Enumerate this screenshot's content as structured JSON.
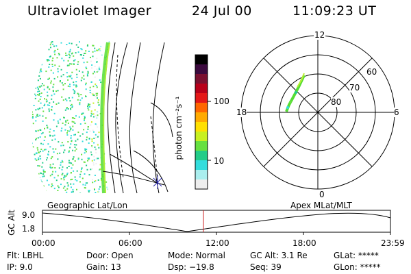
{
  "header": {
    "title": "Ultraviolet Imager",
    "date": "24 Jul 00",
    "time": "11:09:23 UT"
  },
  "colorbar": {
    "unit_label": "photon cm⁻²s⁻¹",
    "ticks": [
      "100",
      "10"
    ],
    "colors": [
      "#000000",
      "#3b0a3e",
      "#7a1030",
      "#b8001a",
      "#e41818",
      "#ff6600",
      "#ffaa00",
      "#ffe000",
      "#c8f020",
      "#66e040",
      "#22cc88",
      "#33dddd",
      "#aaeeee",
      "#eeeeee"
    ]
  },
  "polar": {
    "mlt_labels": {
      "top": "12",
      "left": "18",
      "right": "6",
      "bottom": "0"
    },
    "lat_labels": [
      "60",
      "70",
      "80"
    ]
  },
  "timeline": {
    "y_axis_label": "GC Alt",
    "y_ticks": [
      "9.0",
      "1.8"
    ],
    "left_caption": "Geographic Lat/Lon",
    "right_caption": "Apex MLat/MLT",
    "x_ticks": [
      "00:00",
      "06:00",
      "12:00",
      "18:00",
      "23:59"
    ]
  },
  "status": {
    "flt": "Flt:  LBHL",
    "ip": "IP:  9.0",
    "door": "Door:  Open",
    "gain": "Gain:  13",
    "mode": "Mode:  Normal",
    "dsp": "Dsp:   −19.8",
    "gcalt": "GC Alt:  3.1 Re",
    "seq": "Seq:  39",
    "glat": "GLat:  *****",
    "glon": "GLon:  *****"
  }
}
